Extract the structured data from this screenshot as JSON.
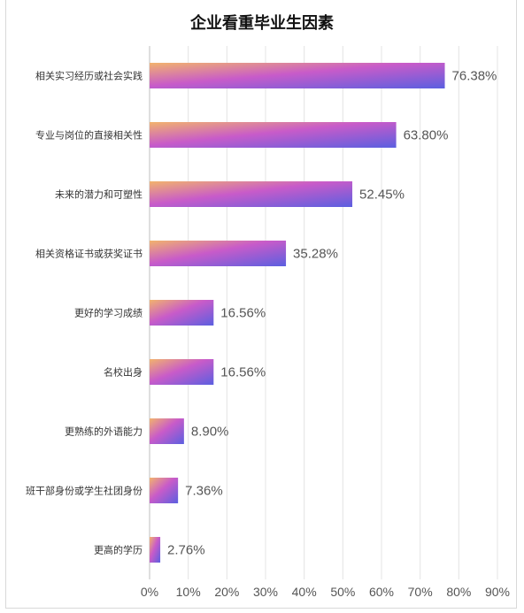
{
  "chart_data": {
    "type": "bar",
    "orientation": "horizontal",
    "title": "企业看重毕业生因素",
    "categories": [
      "相关实习经历或社会实践",
      "专业与岗位的直接相关性",
      "未来的潜力和可塑性",
      "相关资格证书或获奖证书",
      "更好的学习成绩",
      "名校出身",
      "更熟练的外语能力",
      "班干部身份或学生社团身份",
      "更高的学历"
    ],
    "values": [
      76.38,
      63.8,
      52.45,
      35.28,
      16.56,
      16.56,
      8.9,
      7.36,
      2.76
    ],
    "value_labels": [
      "76.38%",
      "63.80%",
      "52.45%",
      "35.28%",
      "16.56%",
      "16.56%",
      "8.90%",
      "7.36%",
      "2.76%"
    ],
    "xlim": [
      0,
      90
    ],
    "xticks": [
      "0%",
      "10%",
      "20%",
      "30%",
      "40%",
      "50%",
      "60%",
      "70%",
      "80%",
      "90%"
    ],
    "grid": true,
    "bar_gradient": [
      "#f2b36d",
      "#c85bc9",
      "#5b5fe0"
    ]
  }
}
